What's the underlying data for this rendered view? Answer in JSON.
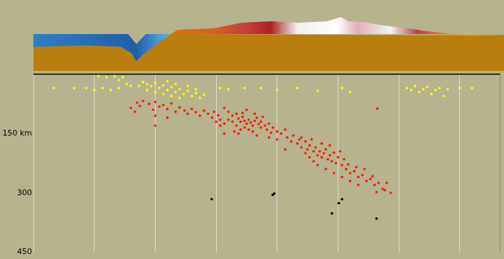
{
  "chart_data": {
    "type": "scatter",
    "xlim": [
      0,
      1150
    ],
    "xticks": [
      0,
      150,
      300,
      450,
      600,
      750,
      900,
      1050
    ],
    "ylim": [
      0,
      450
    ],
    "yticks": [
      {
        "value": 150,
        "label": "150 km"
      },
      300,
      450
    ],
    "grid": "x",
    "tick_labels": "y",
    "series": [
      {
        "color": "#ff1a00",
        "marker": "circle",
        "x": [
          255,
          270,
          262,
          285,
          300,
          310,
          295,
          320,
          330,
          340,
          350,
          360,
          372,
          380,
          390,
          400,
          410,
          420,
          430,
          440,
          445,
          455,
          460,
          250,
          240,
          300,
          330,
          470,
          480,
          490,
          500,
          505,
          510,
          515,
          520,
          525,
          530,
          535,
          540,
          545,
          550,
          555,
          560,
          500,
          490,
          480,
          470,
          520,
          530,
          510,
          540,
          560,
          570,
          575,
          580,
          585,
          590,
          600,
          610,
          620,
          460,
          450,
          495,
          515,
          525,
          545,
          565,
          505,
          550,
          580,
          600,
          470,
          625,
          635,
          640,
          650,
          655,
          660,
          670,
          675,
          680,
          690,
          695,
          700,
          705,
          710,
          715,
          720,
          725,
          730,
          735,
          740,
          745,
          750,
          760,
          765,
          770,
          775,
          780,
          790,
          800,
          810,
          820,
          830,
          840,
          850,
          860,
          865,
          690,
          700,
          680,
          720,
          740,
          760,
          780,
          800,
          670,
          660,
          685,
          710,
          730,
          755,
          795,
          815,
          835,
          845,
          880,
          847,
          300,
          870,
          620
        ],
        "values": [
          72,
          68,
          80,
          75,
          70,
          82,
          90,
          78,
          88,
          74,
          95,
          84,
          92,
          100,
          88,
          96,
          105,
          92,
          100,
          110,
          95,
          104,
          115,
          95,
          85,
          105,
          110,
          85,
          95,
          105,
          100,
          112,
          120,
          108,
          118,
          125,
          115,
          122,
          130,
          118,
          110,
          126,
          135,
          130,
          120,
          115,
          125,
          135,
          140,
          140,
          145,
          120,
          130,
          140,
          125,
          148,
          135,
          145,
          150,
          140,
          130,
          120,
          145,
          98,
          90,
          100,
          108,
          150,
          155,
          160,
          165,
          150,
          160,
          170,
          155,
          175,
          165,
          185,
          170,
          190,
          180,
          195,
          185,
          205,
          195,
          210,
          200,
          190,
          215,
          205,
          220,
          198,
          225,
          210,
          230,
          215,
          240,
          228,
          250,
          245,
          260,
          255,
          270,
          265,
          280,
          275,
          290,
          293,
          220,
          230,
          210,
          240,
          250,
          260,
          270,
          280,
          200,
          160,
          165,
          175,
          180,
          195,
          235,
          240,
          258,
          298,
          300,
          87,
          130,
          275,
          190
        ]
      },
      {
        "color": "#ffff00",
        "marker": "circle",
        "x": [
          270,
          280,
          290,
          300,
          310,
          320,
          330,
          340,
          350,
          360,
          370,
          380,
          390,
          400,
          410,
          420,
          300,
          320,
          340,
          360,
          280,
          260,
          350,
          380,
          400,
          330,
          240,
          230,
          220,
          200,
          180,
          160,
          210,
          50,
          100,
          130,
          150,
          170,
          190,
          210,
          460,
          480,
          520,
          560,
          600,
          650,
          700,
          760,
          780,
          920,
          940,
          950,
          960,
          970,
          980,
          990,
          1000,
          1020,
          1050,
          1080,
          1010,
          930
        ],
        "values": [
          20,
          25,
          30,
          22,
          35,
          28,
          40,
          32,
          45,
          38,
          50,
          42,
          55,
          48,
          60,
          52,
          45,
          50,
          55,
          60,
          40,
          30,
          25,
          30,
          38,
          18,
          30,
          25,
          8,
          5,
          8,
          5,
          15,
          35,
          35,
          35,
          40,
          35,
          40,
          35,
          35,
          38,
          35,
          35,
          40,
          35,
          42,
          35,
          45,
          35,
          30,
          45,
          38,
          32,
          50,
          40,
          35,
          38,
          35,
          35,
          55,
          40
        ]
      },
      {
        "color": "#000000",
        "marker": "circle",
        "x": [
          439,
          589,
          593,
          752,
          760,
          735,
          845
        ],
        "values": [
          316,
          305,
          302,
          326,
          316,
          352,
          365
        ]
      }
    ]
  }
}
